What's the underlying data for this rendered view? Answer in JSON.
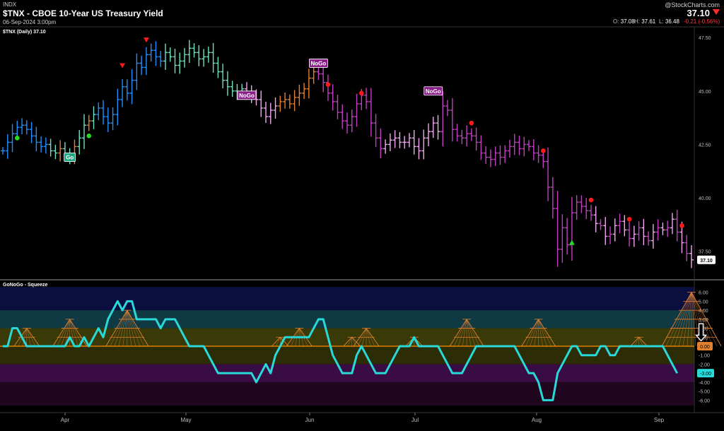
{
  "header": {
    "exchange": "INDX",
    "title": "$TNX - CBOE 10-Year US Treasury Yield",
    "date": "06-Sep-2024 3:00pm",
    "brand": "@StockCharts.com",
    "last_price": "37.10",
    "open_label": "O:",
    "open": "37.08",
    "high_label": "H:",
    "high": "37.61",
    "low_label": "L:",
    "low": "36.48",
    "change": "-0.21 (-0.56%)"
  },
  "colors": {
    "go_strong": "#1e90ff",
    "go": "#66c2e8",
    "go_weak": "#70e0c0",
    "nogo_strong": "#8b1a8b",
    "nogo": "#c040c0",
    "nogo_weak": "#f0a8f0",
    "amber": "#e08030",
    "oscillator": "#29d8d8",
    "zero_line": "#ff8c00",
    "dot_red": "#ff1a1a",
    "dot_green": "#22dd22"
  },
  "chart_data": [
    {
      "type": "line",
      "label": "$TNX (Daily) 37.10",
      "ylim": [
        36.2,
        48.0
      ],
      "y_ticks": [
        "47.50",
        "45.00",
        "42.50",
        "40.00",
        "37.50"
      ],
      "x_ticks": [
        "Apr",
        "May",
        "Jun",
        "Jul",
        "Aug",
        "Sep"
      ],
      "price_tag": "37.10",
      "series": [
        {
          "values": [
            42.2,
            42.6,
            43.0,
            43.3,
            43.4,
            43.2,
            42.9,
            42.6,
            42.4,
            42.5,
            42.2,
            42.1,
            42.3,
            42.0,
            41.9,
            42.4,
            42.8,
            43.4,
            43.6,
            43.9,
            44.2,
            43.8,
            43.5,
            43.9,
            44.6,
            45.2,
            44.9,
            45.5,
            46.3,
            46.1,
            46.7,
            46.9,
            46.6,
            46.4,
            46.8,
            46.6,
            46.2,
            46.4,
            46.7,
            47.0,
            46.8,
            46.5,
            46.6,
            46.8,
            46.3,
            45.9,
            45.5,
            45.2,
            45.0,
            44.9,
            45.1,
            44.9,
            44.8,
            44.6,
            44.2,
            43.8,
            44.1,
            44.3,
            44.5,
            44.6,
            44.4,
            44.7,
            44.9,
            45.1,
            45.6,
            45.9,
            45.8,
            45.4,
            44.9,
            44.5,
            44.0,
            43.6,
            43.4,
            43.8,
            44.4,
            44.8,
            44.5,
            43.5,
            42.8,
            42.3,
            42.5,
            42.7,
            42.8,
            42.6,
            42.6,
            42.8,
            42.4,
            42.2,
            42.8,
            43.1,
            43.5,
            43.1,
            44.3,
            44.1,
            43.2,
            42.9,
            42.8,
            43.0,
            42.9,
            42.6,
            42.1,
            41.9,
            41.8,
            42.1,
            41.9,
            42.2,
            42.4,
            42.6,
            42.3,
            42.5,
            42.4,
            42.1,
            42.0,
            41.7,
            40.5,
            39.5,
            37.6,
            38.6,
            37.8,
            39.3,
            39.8,
            39.6,
            39.4,
            39.2,
            38.8,
            38.7,
            38.2,
            38.3,
            38.7,
            38.9,
            38.5,
            38.1,
            38.3,
            38.6,
            38.2,
            38.0,
            38.4,
            38.6,
            38.5,
            38.6,
            39.0,
            38.4,
            37.9,
            37.4,
            37.1
          ]
        }
      ],
      "markers": [
        {
          "type": "dot",
          "color": "green",
          "x": 3,
          "y": 42.8
        },
        {
          "type": "dot",
          "color": "green",
          "x": 18,
          "y": 42.9
        },
        {
          "type": "badge",
          "text": "Go",
          "x": 14,
          "y": 41.9
        },
        {
          "type": "triangle-down",
          "color": "red",
          "x": 25,
          "y": 46.2
        },
        {
          "type": "triangle-down",
          "color": "red",
          "x": 30,
          "y": 47.4
        },
        {
          "type": "badge",
          "text": "NoGo",
          "x": 51,
          "y": 44.8
        },
        {
          "type": "badge",
          "text": "NoGo",
          "x": 66,
          "y": 46.3
        },
        {
          "type": "dot",
          "color": "red",
          "x": 68,
          "y": 45.3
        },
        {
          "type": "dot",
          "color": "red",
          "x": 75,
          "y": 44.9
        },
        {
          "type": "badge",
          "text": "NoGo",
          "x": 90,
          "y": 45.0
        },
        {
          "type": "dot",
          "color": "red",
          "x": 98,
          "y": 43.5
        },
        {
          "type": "dot",
          "color": "red",
          "x": 113,
          "y": 42.2
        },
        {
          "type": "triangle-up",
          "color": "green",
          "x": 119,
          "y": 37.9
        },
        {
          "type": "dot",
          "color": "red",
          "x": 123,
          "y": 39.9
        },
        {
          "type": "dot",
          "color": "red",
          "x": 131,
          "y": 39.0
        },
        {
          "type": "dot",
          "color": "red",
          "x": 142,
          "y": 38.7
        }
      ]
    },
    {
      "type": "line",
      "label": "GoNoGo - Squeeze",
      "ylim": [
        -6.6,
        6.6
      ],
      "y_ticks": [
        "6.00",
        "5.00",
        "4.00",
        "3.00",
        "2.00",
        "1.00",
        "0.00",
        "-1.00",
        "-2.00",
        "-3.00",
        "-4.00",
        "-5.00",
        "-6.00"
      ],
      "value_tag": "-3.00",
      "zero_tag": "0.00",
      "series": [
        {
          "values": [
            0,
            0,
            2,
            2,
            1,
            0,
            0,
            0,
            0,
            0,
            0,
            0,
            0,
            0,
            1,
            0,
            0,
            1,
            0,
            1,
            2,
            1,
            3,
            4,
            5,
            4,
            5,
            5,
            3,
            3,
            3,
            3,
            3,
            2,
            3,
            3,
            3,
            2,
            1,
            0,
            0,
            0,
            0,
            -1,
            -2,
            -3,
            -3,
            -3,
            -3,
            -3,
            -3,
            -3,
            -3,
            -4,
            -3,
            -2,
            -3,
            -1,
            0,
            1,
            1,
            1,
            1,
            1,
            1,
            2,
            3,
            3,
            1,
            -1,
            -2,
            -3,
            -3,
            -3,
            -1,
            0,
            -1,
            -2,
            -3,
            -3,
            -3,
            -2,
            -1,
            0,
            0,
            0,
            1,
            0,
            0,
            0,
            0,
            0,
            -1,
            -2,
            -3,
            -3,
            -3,
            -2,
            -1,
            0,
            0,
            0,
            0,
            0,
            0,
            0,
            0,
            0,
            -1,
            -2,
            -3,
            -3,
            -4,
            -6,
            -6,
            -6,
            -3,
            -2,
            -1,
            0,
            0,
            -1,
            -1,
            -1,
            -1,
            0,
            0,
            -1,
            -1,
            0,
            0,
            0,
            0,
            0,
            0,
            0,
            0,
            0,
            0,
            -1,
            -2,
            -3
          ]
        }
      ],
      "squeeze_peaks": [
        {
          "x": 5,
          "value": 2
        },
        {
          "x": 14,
          "value": 3
        },
        {
          "x": 26,
          "value": 4
        },
        {
          "x": 58,
          "value": 1
        },
        {
          "x": 62,
          "value": 2
        },
        {
          "x": 73,
          "value": 1
        },
        {
          "x": 76,
          "value": 2
        },
        {
          "x": 86,
          "value": 1
        },
        {
          "x": 97,
          "value": 3
        },
        {
          "x": 112,
          "value": 3
        },
        {
          "x": 133,
          "value": 1
        },
        {
          "x": 144,
          "value": 6
        }
      ],
      "arrow": {
        "direction": "down",
        "x": 146,
        "from": 2.5,
        "to": 0.6
      }
    }
  ]
}
